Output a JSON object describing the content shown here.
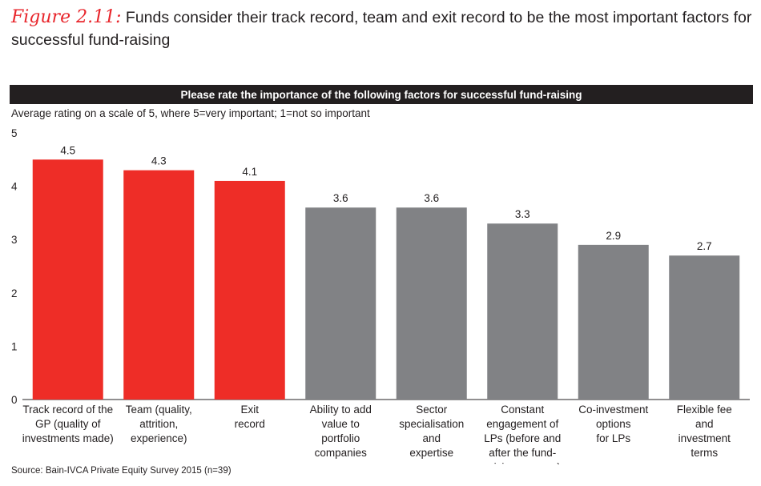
{
  "figure": {
    "label": "Figure 2.11:",
    "title": "Funds consider their track record, team and exit record to be the most important factors for successful fund-raising"
  },
  "banner": "Please rate the importance of the following factors for successful fund-raising",
  "subtitle": "Average rating on a scale of 5, where 5=very important; 1=not so important",
  "source": "Source: Bain-IVCA Private Equity Survey 2015 (n=39)",
  "colors": {
    "highlight": "#ee2d27",
    "neutral": "#818285",
    "banner_bg": "#231f20"
  },
  "chart_data": {
    "type": "bar",
    "categories": [
      "Track record of the GP (quality of investments made)",
      "Team (quality, attrition, experience)",
      "Exit record",
      "Ability to add value to portfolio companies",
      "Sector specialisation and expertise",
      "Constant engagement of LPs (before and after the fund-raising process)",
      "Co-investment options for LPs",
      "Flexible fee and investment terms"
    ],
    "category_lines": [
      [
        "Track record of the",
        "GP (quality of",
        "investments made)"
      ],
      [
        "Team (quality,",
        "attrition,",
        "experience)"
      ],
      [
        "Exit",
        "record"
      ],
      [
        "Ability to add",
        "value to",
        "portfolio",
        "companies"
      ],
      [
        "Sector",
        "specialisation",
        "and",
        "expertise"
      ],
      [
        "Constant",
        "engagement of",
        "LPs (before and",
        "after the fund-",
        "raising process)"
      ],
      [
        "Co-investment",
        "options",
        "for LPs"
      ],
      [
        "Flexible fee",
        "and",
        "investment",
        "terms"
      ]
    ],
    "values": [
      4.5,
      4.3,
      4.1,
      3.6,
      3.6,
      3.3,
      2.9,
      2.7
    ],
    "value_labels": [
      "4.5",
      "4.3",
      "4.1",
      "3.6",
      "3.6",
      "3.3",
      "2.9",
      "2.7"
    ],
    "highlighted": [
      true,
      true,
      true,
      false,
      false,
      false,
      false,
      false
    ],
    "ylim": [
      0,
      5
    ],
    "yticks": [
      0,
      1,
      2,
      3,
      4,
      5
    ],
    "grid": false,
    "legend": "none"
  }
}
